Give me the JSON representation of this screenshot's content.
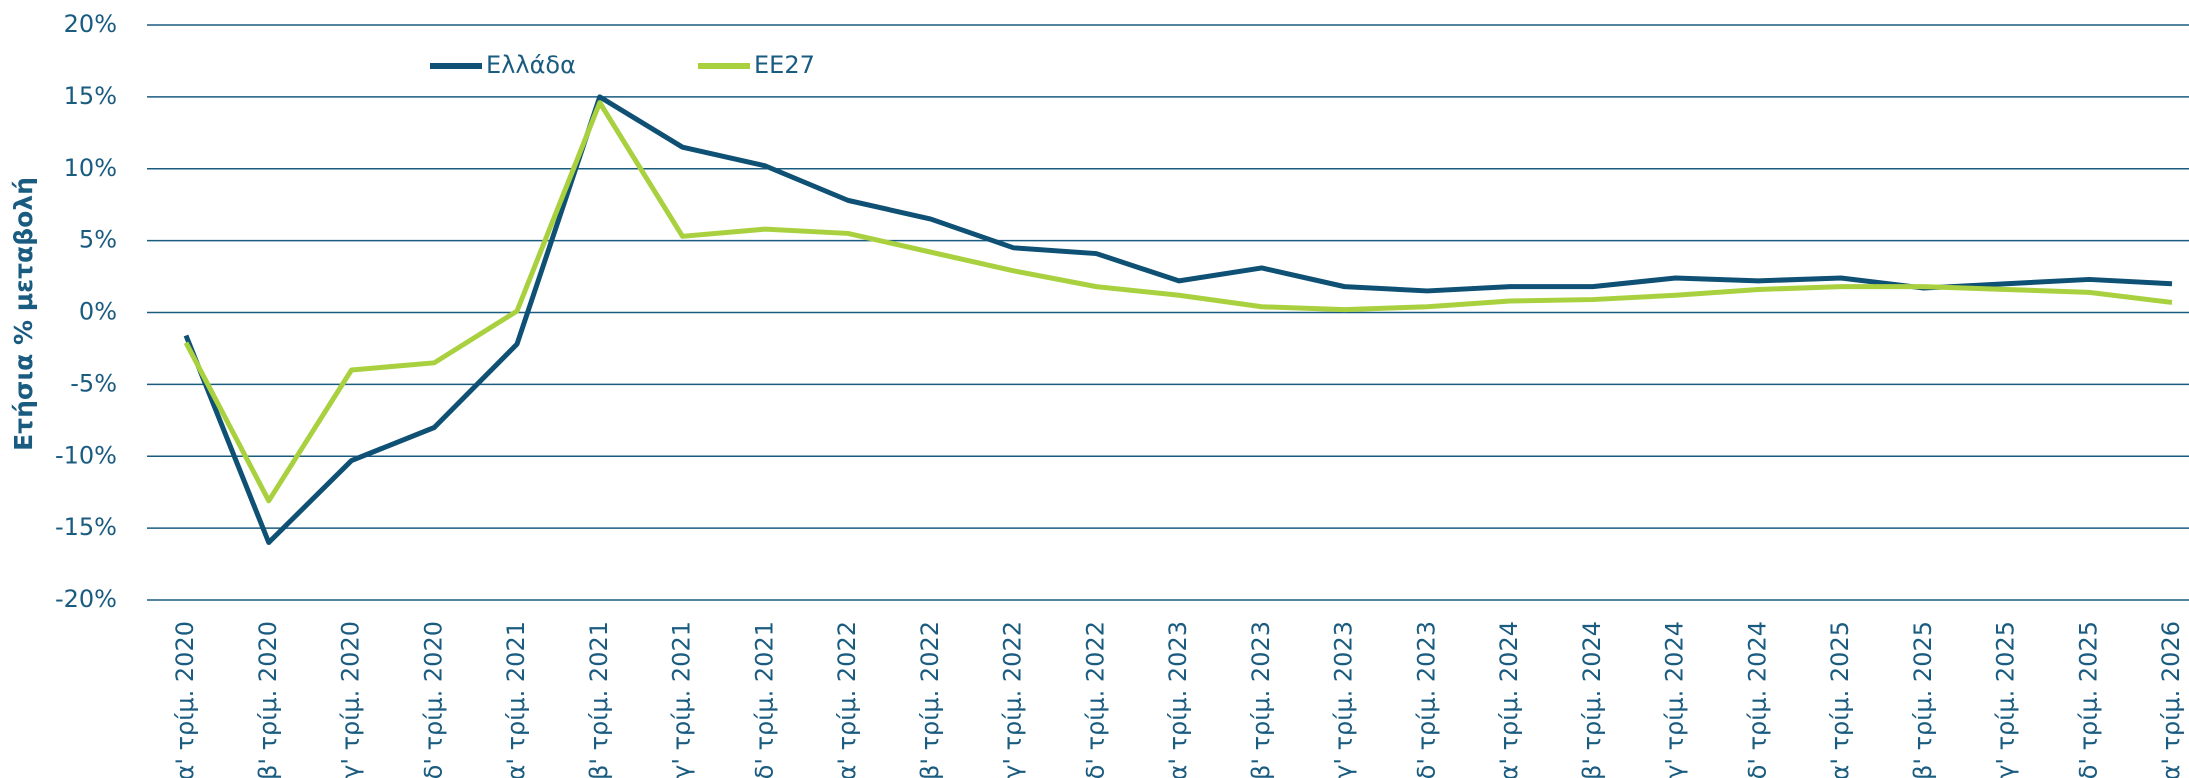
{
  "chart_data": {
    "type": "line",
    "ylabel": "Ετήσια % μεταβολή",
    "categories": [
      "α' τρίμ. 2020",
      "β' τρίμ. 2020",
      "γ' τρίμ. 2020",
      "δ' τρίμ. 2020",
      "α' τρίμ. 2021",
      "β' τρίμ. 2021",
      "γ' τρίμ. 2021",
      "δ' τρίμ. 2021",
      "α' τρίμ. 2022",
      "β' τρίμ. 2022",
      "γ' τρίμ. 2022",
      "δ' τρίμ. 2022",
      "α' τρίμ. 2023",
      "β' τρίμ. 2023",
      "γ' τρίμ. 2023",
      "δ' τρίμ. 2023",
      "α' τρίμ. 2024",
      "β' τρίμ. 2024",
      "γ' τρίμ. 2024",
      "δ' τρίμ. 2024",
      "α' τρίμ. 2025",
      "β' τρίμ. 2025",
      "γ' τρίμ. 2025",
      "δ' τρίμ. 2025",
      "α' τρίμ. 2026"
    ],
    "series": [
      {
        "name": "Ελλάδα",
        "color": "#0f5075",
        "values": [
          -1.6,
          -16,
          -10.3,
          -8,
          -2.2,
          15,
          11.5,
          10.2,
          7.8,
          6.5,
          4.5,
          4.1,
          2.2,
          3.1,
          1.8,
          1.5,
          1.8,
          1.8,
          2.4,
          2.2,
          2.4,
          1.7,
          2.0,
          2.3,
          2.0
        ]
      },
      {
        "name": "ΕΕ27",
        "color": "#a9d13f",
        "values": [
          -2.1,
          -13.1,
          -4,
          -3.5,
          0.1,
          14.6,
          5.3,
          5.8,
          5.5,
          4.2,
          2.9,
          1.8,
          1.2,
          0.4,
          0.2,
          0.4,
          0.8,
          0.9,
          1.2,
          1.6,
          1.8,
          1.8,
          1.6,
          1.4,
          0.7
        ]
      }
    ],
    "ylim": [
      -20,
      20
    ],
    "yticks": [
      {
        "value": 20,
        "label": "20%"
      },
      {
        "value": 15,
        "label": "15%"
      },
      {
        "value": 10,
        "label": "10%"
      },
      {
        "value": 5,
        "label": "5%"
      },
      {
        "value": 0,
        "label": "0%"
      },
      {
        "value": -5,
        "label": "-5%"
      },
      {
        "value": -10,
        "label": "-10%"
      },
      {
        "value": -15,
        "label": "-15%"
      },
      {
        "value": -20,
        "label": "-20%"
      }
    ],
    "grid": true,
    "legend": "top-left"
  }
}
